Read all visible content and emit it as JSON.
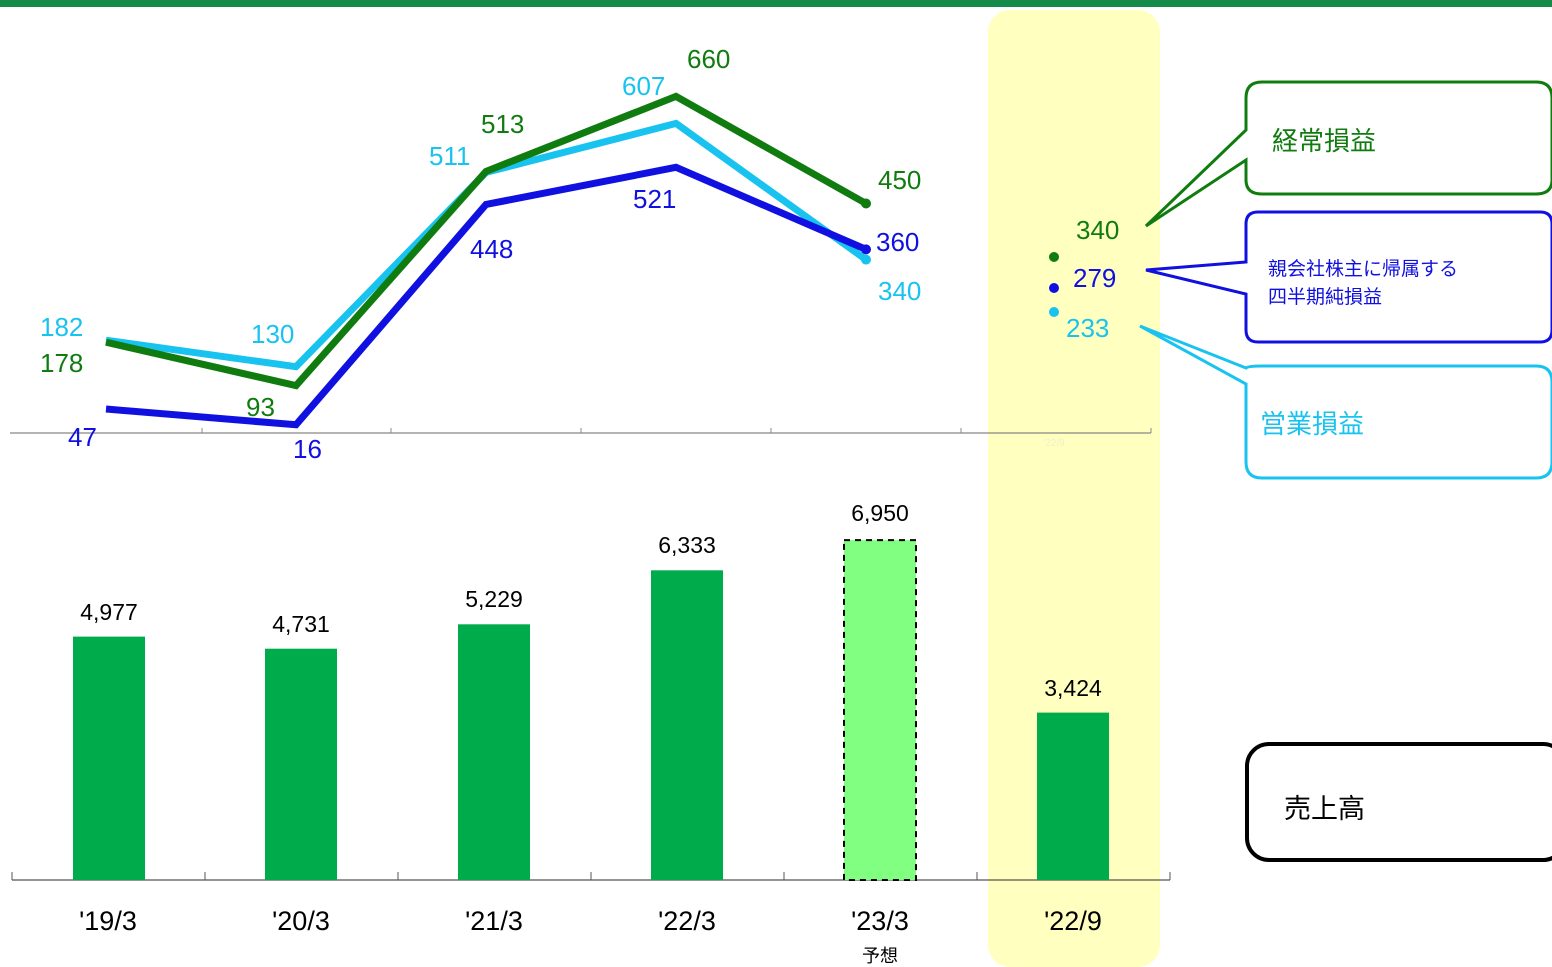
{
  "colors": {
    "ordinary": "#107c10",
    "operating": "#19c3f0",
    "net": "#1010e0",
    "sales_bar": "#00ab4c",
    "forecast_bar": "#80ff80",
    "highlight": "#ffffc0",
    "top_rule": "#168a48"
  },
  "chart_data": [
    {
      "type": "line",
      "categories": [
        "'19/3",
        "'20/3",
        "'21/3",
        "'22/3",
        "'23/3"
      ],
      "series": [
        {
          "name": "経常損益",
          "values": [
            178,
            93,
            513,
            660,
            450
          ]
        },
        {
          "name": "営業損益",
          "values": [
            182,
            130,
            511,
            607,
            340
          ]
        },
        {
          "name": "親会社株主に帰属する四半期純損益",
          "values": [
            47,
            16,
            448,
            521,
            360
          ]
        }
      ],
      "half_year": {
        "category": "'22/9",
        "axis_label": "'22/9",
        "ordinary": 340,
        "net": 279,
        "operating": 233
      },
      "legend": {
        "ordinary": "経常損益",
        "net_line1": "親会社株主に帰属する",
        "net_line2": "四半期純損益",
        "operating": "営業損益"
      }
    },
    {
      "type": "bar",
      "categories": [
        "'19/3",
        "'20/3",
        "'21/3",
        "'22/3",
        "'23/3",
        "'22/9"
      ],
      "values": [
        4977,
        4731,
        5229,
        6333,
        6950,
        3424
      ],
      "value_labels": [
        "4,977",
        "4,731",
        "5,229",
        "6,333",
        "6,950",
        "3,424"
      ],
      "forecast_index": 4,
      "forecast_note": "予想",
      "legend": "売上高"
    }
  ]
}
